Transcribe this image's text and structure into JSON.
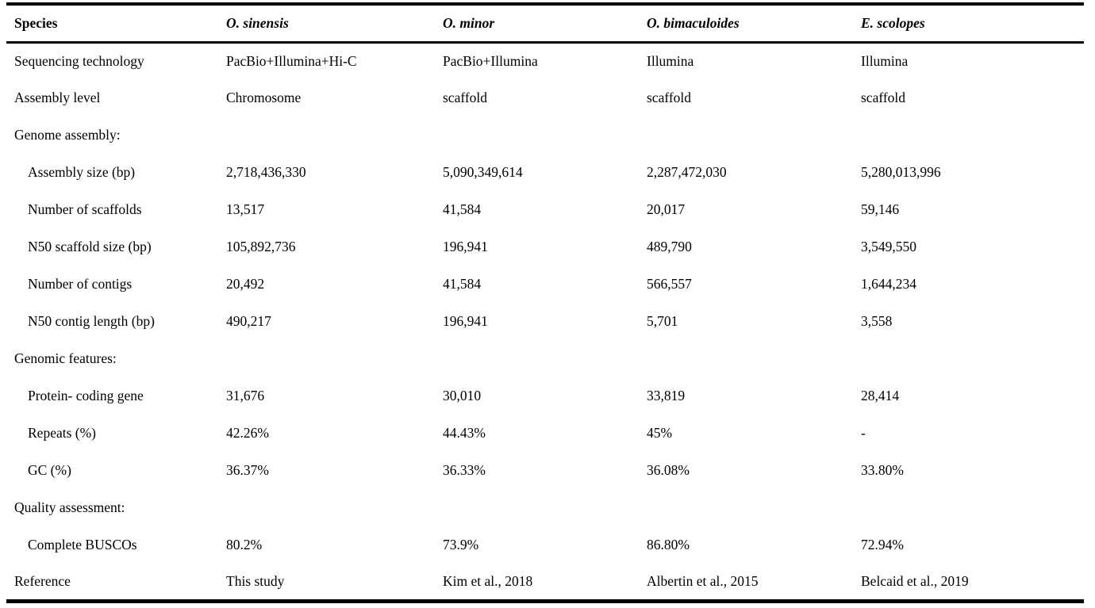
{
  "table": {
    "columns": [
      "Species",
      "O. sinensis",
      "O. minor",
      "O. bimaculoides",
      "E. scolopes"
    ],
    "rows": [
      {
        "label": "Sequencing technology",
        "indent": false,
        "section": false,
        "values": [
          "PacBio+Illumina+Hi-C",
          "PacBio+Illumina",
          "Illumina",
          "Illumina"
        ]
      },
      {
        "label": "Assembly level",
        "indent": false,
        "section": false,
        "values": [
          "Chromosome",
          "scaffold",
          "scaffold",
          "scaffold"
        ]
      },
      {
        "label": "Genome assembly:",
        "indent": false,
        "section": true,
        "values": [
          "",
          "",
          "",
          ""
        ]
      },
      {
        "label": "Assembly size (bp)",
        "indent": true,
        "section": false,
        "values": [
          "2,718,436,330",
          "5,090,349,614",
          "2,287,472,030",
          "5,280,013,996"
        ]
      },
      {
        "label": "Number of scaffolds",
        "indent": true,
        "section": false,
        "values": [
          "13,517",
          "41,584",
          "20,017",
          "59,146"
        ]
      },
      {
        "label": "N50 scaffold size (bp)",
        "indent": true,
        "section": false,
        "values": [
          "105,892,736",
          "196,941",
          "489,790",
          "3,549,550"
        ]
      },
      {
        "label": "Number of contigs",
        "indent": true,
        "section": false,
        "values": [
          "20,492",
          "41,584",
          "566,557",
          "1,644,234"
        ]
      },
      {
        "label": "N50 contig length (bp)",
        "indent": true,
        "section": false,
        "values": [
          "490,217",
          "196,941",
          "5,701",
          "3,558"
        ]
      },
      {
        "label": "Genomic features:",
        "indent": false,
        "section": true,
        "values": [
          "",
          "",
          "",
          ""
        ]
      },
      {
        "label": "Protein- coding gene",
        "indent": true,
        "section": false,
        "values": [
          "31,676",
          "30,010",
          "33,819",
          "28,414"
        ]
      },
      {
        "label": "Repeats (%)",
        "indent": true,
        "section": false,
        "values": [
          "42.26%",
          "44.43%",
          "45%",
          "-"
        ]
      },
      {
        "label": "GC (%)",
        "indent": true,
        "section": false,
        "values": [
          "36.37%",
          "36.33%",
          "36.08%",
          "33.80%"
        ]
      },
      {
        "label": "Quality assessment:",
        "indent": false,
        "section": true,
        "values": [
          "",
          "",
          "",
          ""
        ]
      },
      {
        "label": "Complete BUSCOs",
        "indent": true,
        "section": false,
        "values": [
          "80.2%",
          "73.9%",
          "86.80%",
          "72.94%"
        ]
      },
      {
        "label": "Reference",
        "indent": false,
        "section": false,
        "values": [
          "This study",
          "Kim et al., 2018",
          "Albertin et al., 2015",
          "Belcaid et al., 2019"
        ]
      }
    ]
  },
  "colors": {
    "text": "#000000",
    "background": "#ffffff",
    "rule": "#000000"
  }
}
